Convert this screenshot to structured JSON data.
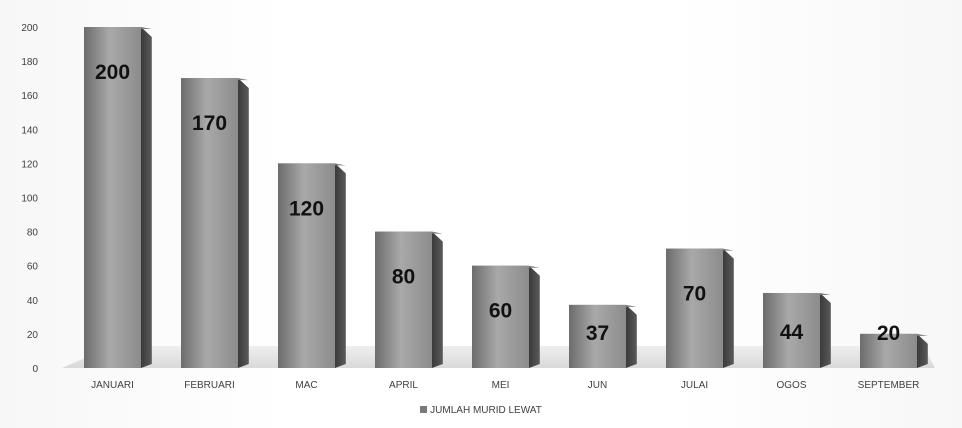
{
  "chart_data": {
    "type": "bar",
    "style": "3d-column",
    "categories": [
      "JANUARI",
      "FEBRUARI",
      "MAC",
      "APRIL",
      "MEI",
      "JUN",
      "JULAI",
      "OGOS",
      "SEPTEMBER"
    ],
    "series": [
      {
        "name": "JUMLAH MURID LEWAT",
        "values": [
          200,
          170,
          120,
          80,
          60,
          37,
          70,
          44,
          20
        ]
      }
    ],
    "data_labels": [
      "200",
      "170",
      "120",
      "80",
      "60",
      "37",
      "70",
      "44",
      "20"
    ],
    "ylim": [
      0,
      200
    ],
    "yticks": [
      0,
      20,
      40,
      60,
      80,
      100,
      120,
      140,
      160,
      180,
      200
    ],
    "legend_position": "bottom",
    "grid": false,
    "colors": {
      "bar": "#9a9a9a",
      "bar_dark": "#4f4f4f",
      "floor": "#e4e4e4"
    }
  }
}
